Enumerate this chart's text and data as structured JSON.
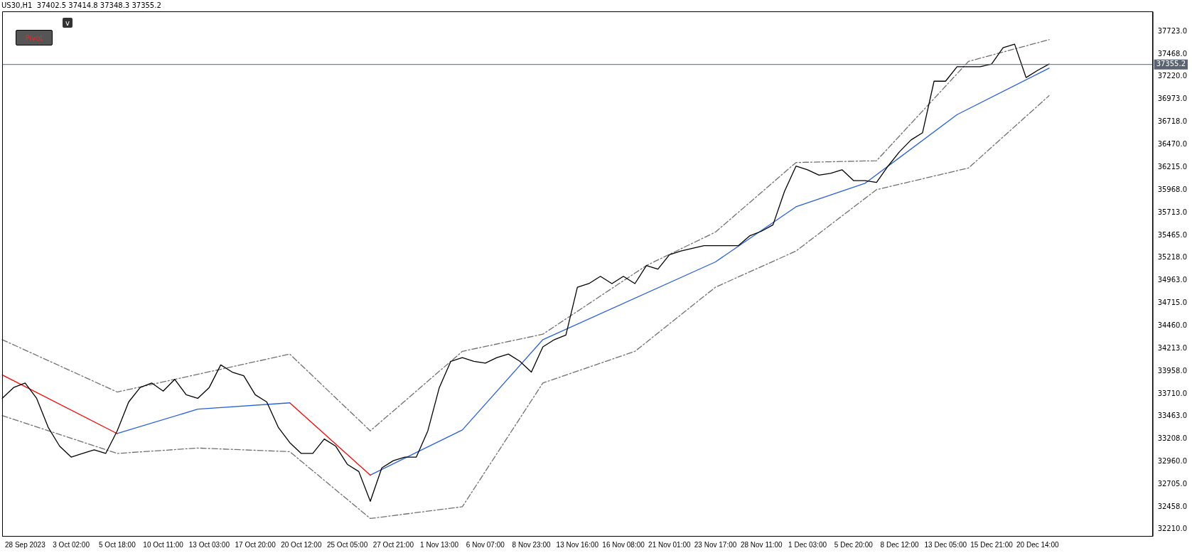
{
  "chart_data": {
    "type": "line",
    "title": "US30,H1  37402.5 37414.8 37348.3 37355.2",
    "categories": [
      null,
      null,
      "28 Sep 2023",
      null,
      null,
      null,
      "3 Oct 02:00",
      null,
      null,
      null,
      "5 Oct 18:00",
      null,
      null,
      null,
      "10 Oct 11:00",
      null,
      null,
      null,
      "13 Oct 03:00",
      null,
      null,
      null,
      "17 Oct 20:00",
      null,
      null,
      null,
      "20 Oct 12:00",
      null,
      null,
      null,
      "25 Oct 05:00",
      null,
      null,
      null,
      "27 Oct 21:00",
      null,
      null,
      null,
      "1 Nov 13:00",
      null,
      null,
      null,
      "6 Nov 07:00",
      null,
      null,
      null,
      "8 Nov 23:00",
      null,
      null,
      null,
      "13 Nov 16:00",
      null,
      null,
      null,
      "16 Nov 08:00",
      null,
      null,
      null,
      "21 Nov 01:00",
      null,
      null,
      null,
      "23 Nov 17:00",
      null,
      null,
      null,
      "28 Nov 11:00",
      null,
      null,
      null,
      "1 Dec 03:00",
      null,
      null,
      null,
      "5 Dec 20:00",
      null,
      null,
      null,
      "8 Dec 12:00",
      null,
      null,
      null,
      "13 Dec 05:00",
      null,
      null,
      null,
      "15 Dec 21:00",
      null,
      null,
      null,
      "20 Dec 14:00",
      null,
      null,
      null,
      null,
      null,
      null,
      null,
      null,
      null,
      null
    ],
    "series": [
      {
        "color": "#000000",
        "values": [
          33660,
          33780,
          33830,
          33660,
          33340,
          33130,
          33010,
          33050,
          33090,
          33050,
          33300,
          33620,
          33780,
          33830,
          33740,
          33870,
          33700,
          33660,
          33780,
          34030,
          33950,
          33910,
          33700,
          33620,
          33340,
          33170,
          33050,
          33050,
          33210,
          33130,
          32930,
          32850,
          32520,
          32890,
          32970,
          33010,
          33010,
          33300,
          33780,
          34070,
          34110,
          34070,
          34050,
          34110,
          34150,
          34070,
          33950,
          34230,
          34310,
          34360,
          34890,
          34930,
          35010,
          34930,
          35010,
          34930,
          35130,
          35090,
          35250,
          35290,
          35320,
          35350,
          35350,
          35350,
          35350,
          35460,
          35510,
          35580,
          35950,
          36230,
          36190,
          36130,
          36150,
          36190,
          36070,
          36070,
          36050,
          36230,
          36390,
          36520,
          36600,
          37170,
          37170,
          37330,
          37330,
          37330,
          37360,
          37540,
          37580,
          37210,
          37290,
          37360,
          null,
          null,
          null,
          null,
          null,
          null,
          null,
          null,
          null
        ]
      },
      {
        "color": "#ff0000",
        "values": [
          33920,
          null,
          null,
          null,
          null,
          null,
          null,
          null,
          null,
          null,
          33270,
          null,
          null,
          null,
          null,
          null,
          null,
          null,
          null,
          null,
          null,
          null,
          null,
          null,
          null,
          null,
          null,
          null,
          null,
          null,
          null,
          null,
          null,
          null,
          null,
          null,
          null,
          null,
          null,
          null,
          null,
          null,
          null,
          null,
          null,
          null,
          null,
          null,
          null,
          null,
          null,
          null,
          null,
          null,
          null,
          null,
          null,
          null,
          null,
          null,
          null,
          null,
          null,
          null,
          null,
          null,
          null,
          null,
          null,
          null,
          null,
          null,
          null,
          null,
          null,
          null,
          null,
          null,
          null,
          null,
          null,
          null,
          null,
          null,
          null,
          null,
          null,
          null,
          null,
          null,
          null,
          null,
          null,
          null,
          null,
          null,
          null,
          null,
          null,
          null,
          null
        ]
      },
      {
        "color": "#2860e0",
        "values": [
          null,
          null,
          null,
          null,
          null,
          null,
          null,
          null,
          null,
          null,
          33270,
          null,
          null,
          null,
          null,
          null,
          null,
          33540,
          null,
          null,
          null,
          null,
          null,
          null,
          null,
          33610,
          null,
          null,
          null,
          null,
          null,
          null,
          null,
          null,
          null,
          null,
          null,
          null,
          null,
          null,
          null,
          null,
          null,
          null,
          null,
          null,
          null,
          null,
          null,
          null,
          null,
          null,
          null,
          null,
          null,
          null,
          null,
          null,
          null,
          null,
          null,
          null,
          null,
          null,
          null,
          null,
          null,
          null,
          null,
          null,
          null,
          null,
          null,
          null,
          null,
          null,
          null,
          null,
          null,
          null,
          null,
          null,
          null,
          null,
          null,
          null,
          null,
          null,
          null,
          null,
          null,
          null,
          null,
          null,
          null,
          null,
          null,
          null,
          null,
          null,
          null
        ]
      },
      {
        "color": "#ff0000",
        "values": [
          null,
          null,
          null,
          null,
          null,
          null,
          null,
          null,
          null,
          null,
          null,
          null,
          null,
          null,
          null,
          null,
          null,
          null,
          null,
          null,
          null,
          null,
          null,
          null,
          null,
          33610,
          null,
          null,
          null,
          null,
          null,
          null,
          32810,
          null,
          null,
          null,
          null,
          null,
          null,
          null,
          null,
          null,
          null,
          null,
          null,
          null,
          null,
          null,
          null,
          null,
          null,
          null,
          null,
          null,
          null,
          null,
          null,
          null,
          null,
          null,
          null,
          null,
          null,
          null,
          null,
          null,
          null,
          null,
          null,
          null,
          null,
          null,
          null,
          null,
          null,
          null,
          null,
          null,
          null,
          null,
          null,
          null,
          null,
          null,
          null,
          null,
          null,
          null,
          null,
          null,
          null,
          null,
          null,
          null,
          null,
          null,
          null,
          null,
          null,
          null,
          null
        ]
      },
      {
        "color": "#2860e0",
        "values": [
          null,
          null,
          null,
          null,
          null,
          null,
          null,
          null,
          null,
          null,
          null,
          null,
          null,
          null,
          null,
          null,
          null,
          null,
          null,
          null,
          null,
          null,
          null,
          null,
          null,
          null,
          null,
          null,
          null,
          null,
          null,
          null,
          32810,
          null,
          null,
          null,
          null,
          null,
          null,
          null,
          33310,
          null,
          null,
          null,
          null,
          null,
          null,
          34310,
          null,
          null,
          null,
          null,
          null,
          null,
          null,
          null,
          null,
          null,
          null,
          null,
          null,
          null,
          35170,
          null,
          null,
          null,
          null,
          null,
          null,
          35780,
          null,
          null,
          null,
          null,
          null,
          36040,
          null,
          null,
          null,
          null,
          null,
          null,
          null,
          36800,
          null,
          null,
          null,
          null,
          null,
          null,
          null,
          37315,
          null,
          null,
          null,
          null,
          null,
          null,
          null,
          null,
          null
        ]
      },
      {
        "color": "#707070",
        "line_style": "dashdot",
        "values": [
          34310,
          null,
          null,
          null,
          null,
          null,
          null,
          null,
          null,
          null,
          33730,
          null,
          null,
          null,
          null,
          null,
          null,
          null,
          null,
          null,
          null,
          null,
          null,
          null,
          null,
          34150,
          null,
          null,
          null,
          null,
          null,
          null,
          33300,
          null,
          null,
          null,
          null,
          null,
          null,
          null,
          34180,
          null,
          null,
          null,
          null,
          null,
          null,
          34370,
          null,
          null,
          null,
          null,
          null,
          null,
          null,
          null,
          35130,
          null,
          null,
          null,
          null,
          null,
          35500,
          null,
          null,
          null,
          null,
          null,
          null,
          36270,
          null,
          null,
          null,
          null,
          null,
          null,
          36290,
          null,
          null,
          null,
          null,
          null,
          null,
          null,
          37390,
          null,
          null,
          null,
          null,
          null,
          null,
          37630,
          null,
          null,
          null,
          null,
          null,
          null,
          null,
          null,
          null
        ]
      },
      {
        "color": "#707070",
        "line_style": "dashdot",
        "values": [
          33470,
          null,
          null,
          null,
          null,
          null,
          null,
          null,
          null,
          null,
          33050,
          null,
          null,
          null,
          null,
          null,
          null,
          33110,
          null,
          null,
          null,
          null,
          null,
          null,
          null,
          33070,
          null,
          null,
          null,
          null,
          null,
          null,
          32330,
          null,
          null,
          null,
          null,
          null,
          null,
          null,
          32460,
          null,
          null,
          null,
          null,
          null,
          null,
          33830,
          null,
          null,
          null,
          null,
          null,
          null,
          null,
          34180,
          null,
          null,
          null,
          null,
          null,
          null,
          34890,
          null,
          null,
          null,
          null,
          null,
          null,
          35290,
          null,
          null,
          null,
          null,
          null,
          null,
          35970,
          null,
          null,
          null,
          null,
          null,
          null,
          null,
          36210,
          null,
          null,
          null,
          null,
          null,
          null,
          37010,
          null,
          null,
          null,
          null,
          null,
          null,
          null,
          null,
          null
        ]
      }
    ],
    "ylim": [
      32137,
      37943
    ],
    "yticks": [
      {
        "value": 32210,
        "label": "32210.0"
      },
      {
        "value": 32458,
        "label": "32458.0"
      },
      {
        "value": 32705,
        "label": "32705.0"
      },
      {
        "value": 32960,
        "label": "32960.0"
      },
      {
        "value": 33208,
        "label": "33208.0"
      },
      {
        "value": 33463,
        "label": "33463.0"
      },
      {
        "value": 33710,
        "label": "33710.0"
      },
      {
        "value": 33958,
        "label": "33958.0"
      },
      {
        "value": 34213,
        "label": "34213.0"
      },
      {
        "value": 34460,
        "label": "34460.0"
      },
      {
        "value": 34715,
        "label": "34715.0"
      },
      {
        "value": 34963,
        "label": "34963.0"
      },
      {
        "value": 35218,
        "label": "35218.0"
      },
      {
        "value": 35465,
        "label": "35465.0"
      },
      {
        "value": 35713,
        "label": "35713.0"
      },
      {
        "value": 35968,
        "label": "35968.0"
      },
      {
        "value": 36215,
        "label": "36215.0"
      },
      {
        "value": 36470,
        "label": "36470.0"
      },
      {
        "value": 36718,
        "label": "36718.0"
      },
      {
        "value": 36973,
        "label": "36973.0"
      },
      {
        "value": 37220,
        "label": "37220.0"
      },
      {
        "value": 37468,
        "label": "37468.0"
      },
      {
        "value": 37723,
        "label": "37723.0"
      }
    ],
    "ref_lines": [
      {
        "axis": "y",
        "value": 37355.2,
        "label": "37355.2",
        "color": "#5a6470"
      }
    ],
    "annotations": [
      "Pivot",
      "v"
    ],
    "grid": false,
    "legend": false,
    "marker": "none"
  }
}
